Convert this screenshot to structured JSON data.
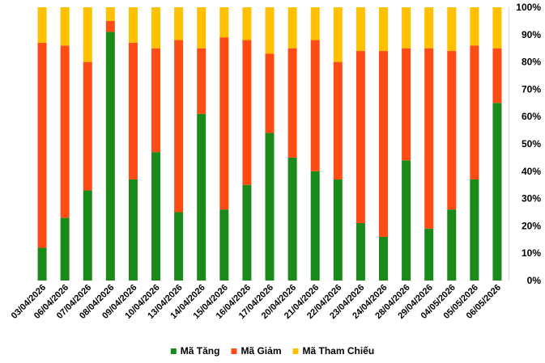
{
  "chart_data": {
    "type": "bar",
    "stacked": true,
    "percent": true,
    "categories": [
      "03/04/2026",
      "06/04/2026",
      "07/04/2026",
      "08/04/2026",
      "09/04/2026",
      "10/04/2026",
      "13/04/2026",
      "14/04/2026",
      "15/04/2026",
      "16/04/2026",
      "17/04/2026",
      "20/04/2026",
      "21/04/2026",
      "22/04/2026",
      "23/04/2026",
      "24/04/2026",
      "28/04/2026",
      "29/04/2026",
      "04/05/2026",
      "05/05/2026",
      "06/05/2026"
    ],
    "series": [
      {
        "name": "Mã Tăng",
        "color": "#1a8a1a",
        "values": [
          12,
          23,
          33,
          91,
          37,
          47,
          25,
          61,
          26,
          35,
          54,
          45,
          40,
          37,
          21,
          16,
          44,
          19,
          26,
          37,
          65
        ]
      },
      {
        "name": "Mã Giảm",
        "color": "#ff4b14",
        "values": [
          75,
          63,
          47,
          4,
          50,
          38,
          63,
          24,
          63,
          53,
          29,
          40,
          48,
          43,
          63,
          68,
          41,
          66,
          58,
          49,
          20
        ]
      },
      {
        "name": "Mã Tham Chiếu",
        "color": "#ffc000",
        "values": [
          13,
          14,
          20,
          5,
          13,
          15,
          12,
          15,
          11,
          12,
          17,
          15,
          12,
          20,
          16,
          16,
          15,
          15,
          16,
          14,
          15
        ]
      }
    ],
    "ylim": [
      0,
      100
    ],
    "yticks": [
      "0%",
      "10%",
      "20%",
      "30%",
      "40%",
      "50%",
      "60%",
      "70%",
      "80%",
      "90%",
      "100%"
    ],
    "y_axis_position": "right",
    "legend_position": "bottom",
    "grid": false
  }
}
